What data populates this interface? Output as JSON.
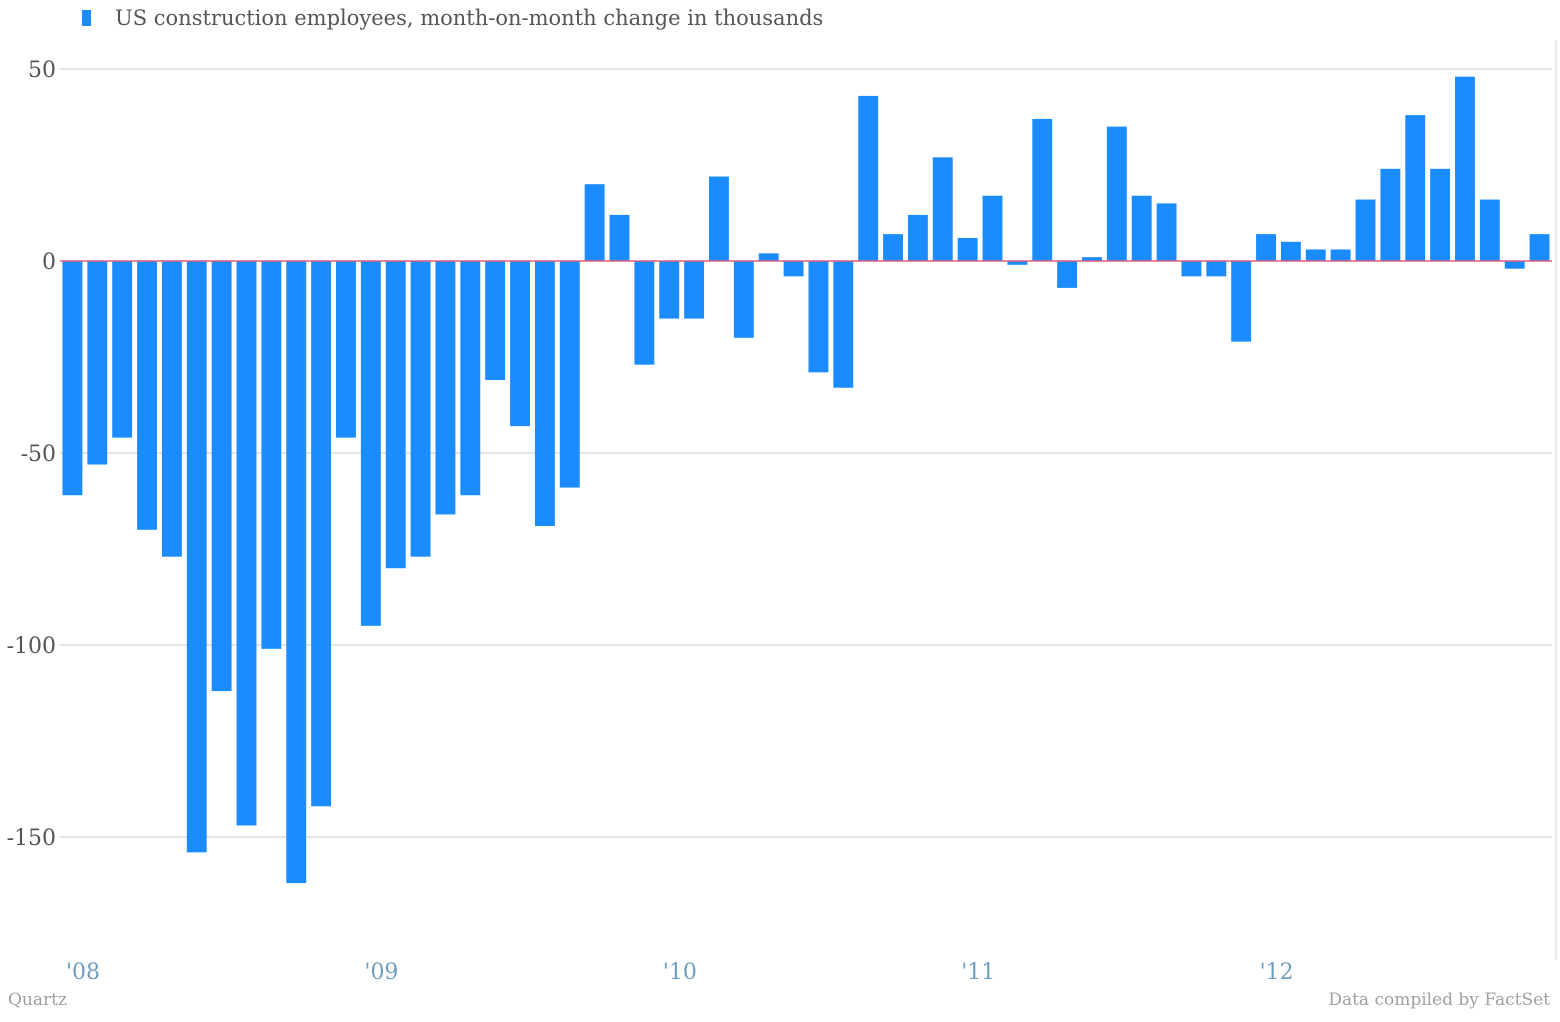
{
  "chart_data": {
    "type": "bar",
    "legend": "US construction employees, month-on-month change in thousands",
    "legend_position": "top-left",
    "grid": true,
    "ylim": [
      -175,
      50
    ],
    "yticks": [
      "50",
      "0",
      "-50",
      "-100",
      "-150"
    ],
    "ytick_values": [
      50,
      0,
      -50,
      -100,
      -150
    ],
    "xticks": [
      "'08",
      "'09",
      "'10",
      "'11",
      "'12"
    ],
    "series": [
      {
        "color": "#1a8cff",
        "values": [
          -61,
          -53,
          -46,
          -70,
          -77,
          -154,
          -112,
          -147,
          -101,
          -162,
          -142,
          -46,
          -95,
          -80,
          -77,
          -66,
          -61,
          -31,
          -43,
          -69,
          -59,
          20,
          12,
          -27,
          -15,
          -15,
          22,
          -20,
          2,
          -4,
          -29,
          -33,
          43,
          7,
          12,
          27,
          6,
          17,
          -1,
          37,
          -7,
          1,
          35,
          17,
          15,
          -4,
          -4,
          -21,
          7,
          5,
          3,
          3,
          16,
          24,
          38,
          24,
          48,
          16,
          -2,
          7
        ]
      }
    ],
    "zero_line_color": "#e05c7a",
    "bar_color": "#1a8cff"
  },
  "footer": {
    "source_left": "Quartz",
    "source_right": "Data compiled by FactSet"
  }
}
